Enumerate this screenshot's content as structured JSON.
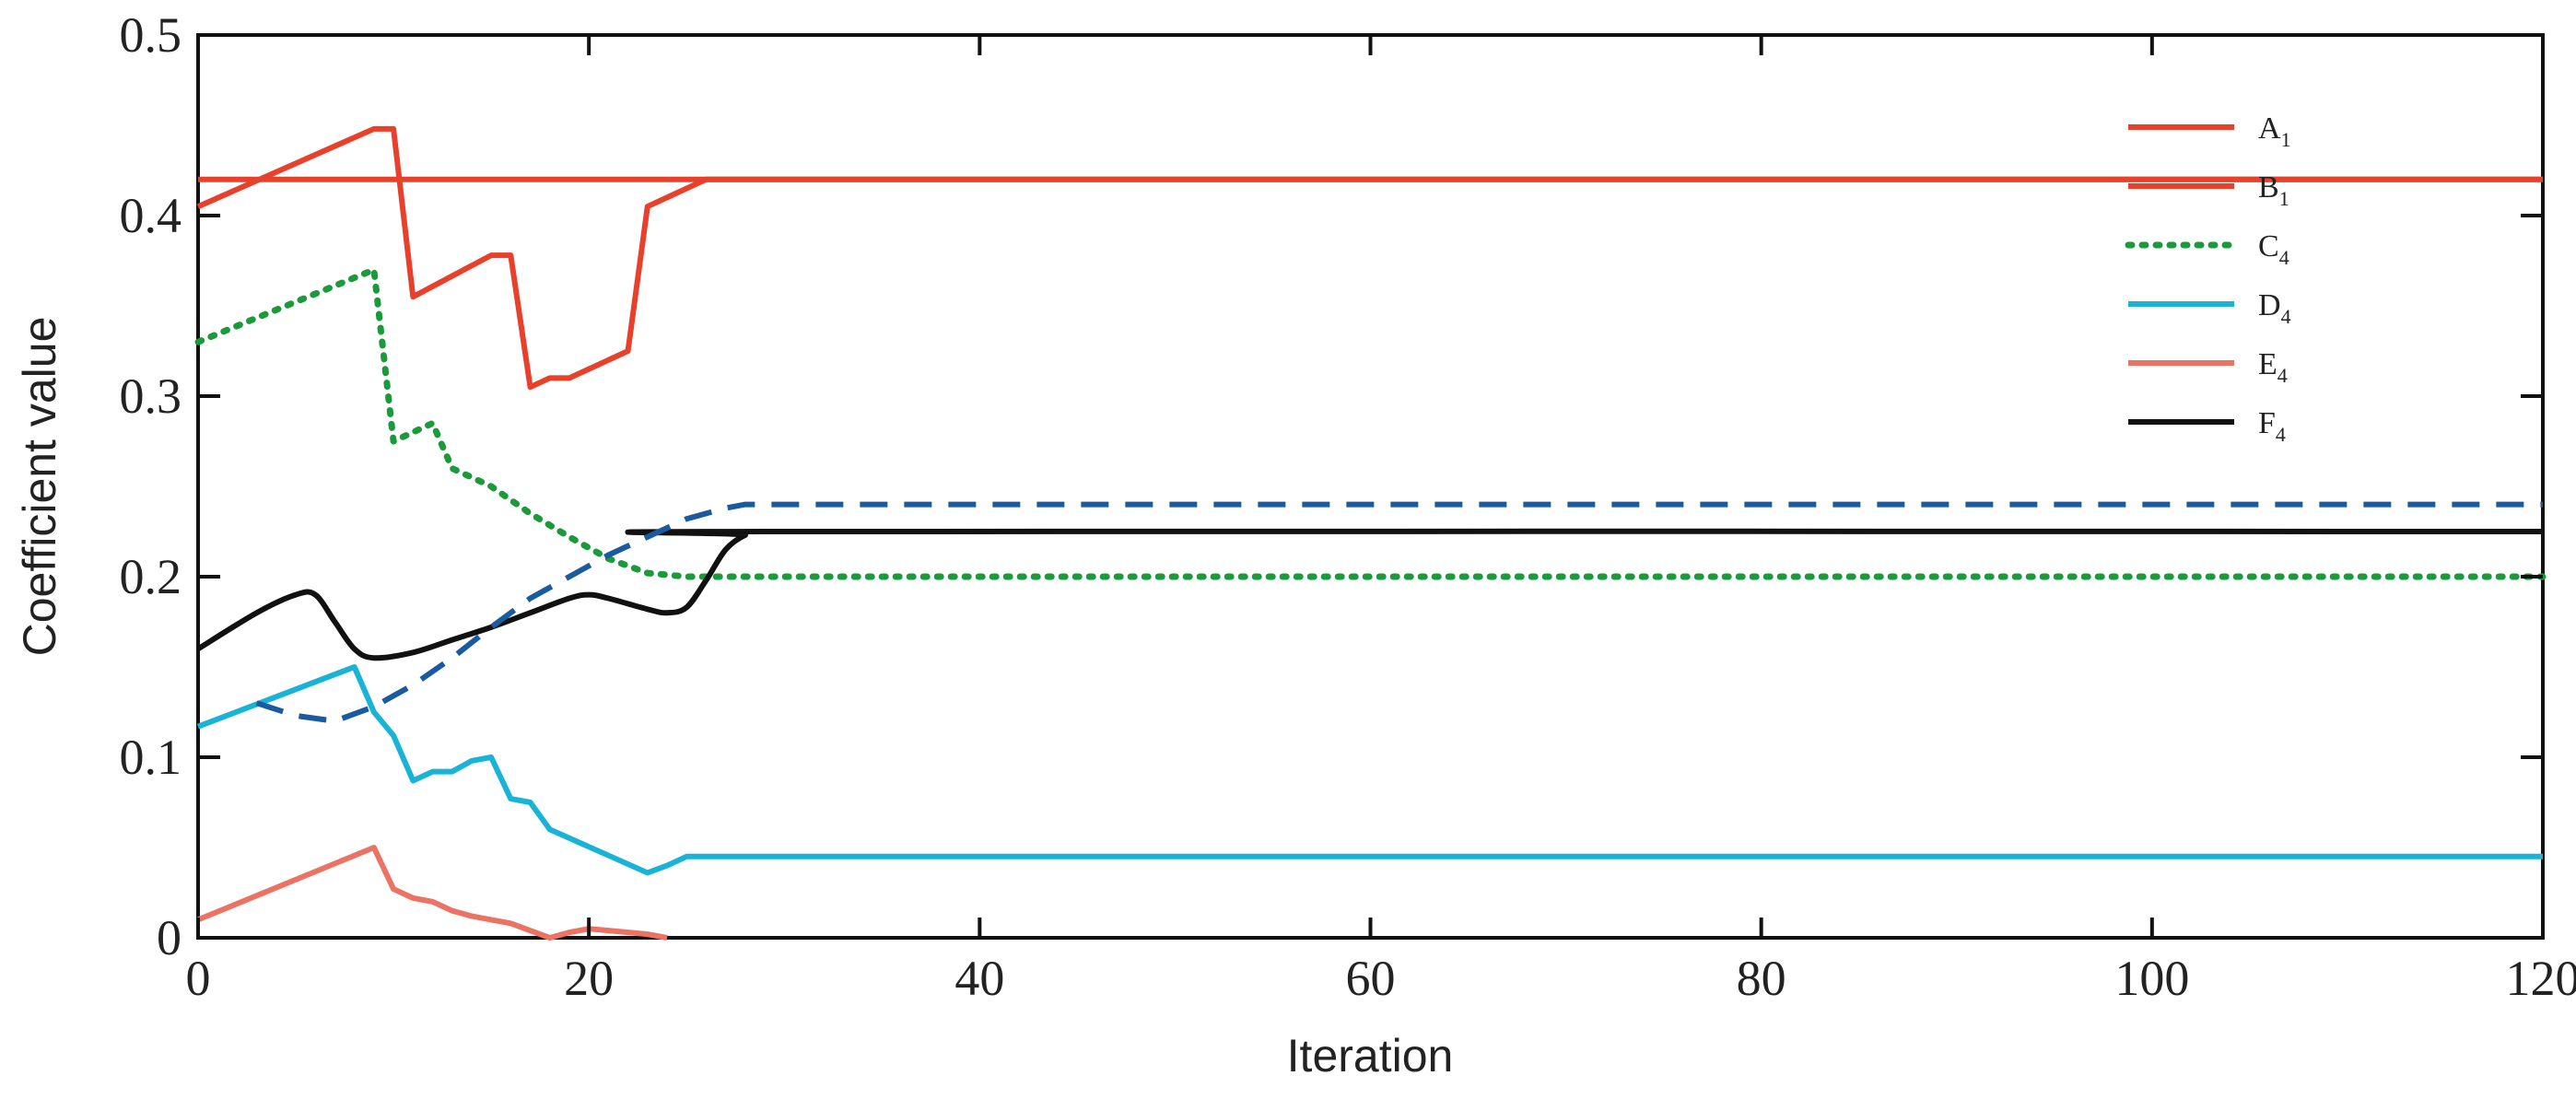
{
  "chart_data": {
    "type": "line",
    "title": "",
    "xlabel": "Iteration",
    "ylabel": "Coefficient value",
    "xlim": [
      0,
      120
    ],
    "ylim": [
      0,
      0.5
    ],
    "xticks": [
      0,
      20,
      40,
      60,
      80,
      100,
      120
    ],
    "xtick_labels": [
      "0",
      "20",
      "40",
      "60",
      "80",
      "100",
      "120"
    ],
    "yticks": [
      0,
      0.1,
      0.2,
      0.3,
      0.4,
      0.5
    ],
    "ytick_labels": [
      "0",
      "0.1",
      "0.2",
      "0.3",
      "0.4",
      "0.5"
    ],
    "zero_label_color": "#cc2222",
    "grid": false,
    "legend_position": "top-right",
    "series": [
      {
        "name": "A",
        "subscript": "1",
        "color": "#e8402a",
        "style": "solid",
        "x": [
          0,
          9,
          10,
          11,
          15,
          16,
          17,
          18,
          19,
          22,
          23,
          24,
          26,
          120
        ],
        "y": [
          0.405,
          0.448,
          0.448,
          0.355,
          0.378,
          0.378,
          0.305,
          0.31,
          0.31,
          0.325,
          0.405,
          0.41,
          0.42,
          0.42
        ]
      },
      {
        "name": "B",
        "subscript": "1",
        "color": "#e8402a",
        "style": "solid",
        "x": [
          0,
          120
        ],
        "y": [
          0.42,
          0.42
        ]
      },
      {
        "name": "C",
        "subscript": "4",
        "color": "#1a9a3a",
        "style": "dotted",
        "x": [
          0,
          9,
          10,
          11,
          12,
          13,
          14,
          15,
          17,
          19,
          21,
          23,
          25,
          120
        ],
        "y": [
          0.33,
          0.37,
          0.275,
          0.28,
          0.285,
          0.26,
          0.255,
          0.25,
          0.235,
          0.222,
          0.21,
          0.202,
          0.2,
          0.2
        ]
      },
      {
        "name": "D",
        "subscript": "4",
        "color": "#18b3d6",
        "style": "solid",
        "x": [
          0,
          8,
          9,
          10,
          11,
          12,
          13,
          14,
          15,
          16,
          17,
          18,
          23,
          24,
          25,
          120
        ],
        "y": [
          0.117,
          0.15,
          0.125,
          0.112,
          0.087,
          0.092,
          0.092,
          0.098,
          0.1,
          0.077,
          0.075,
          0.06,
          0.036,
          0.04,
          0.045,
          0.045
        ]
      },
      {
        "name": "E",
        "subscript": "4",
        "color": "#ec7363",
        "style": "solid",
        "x": [
          0,
          9,
          10,
          11,
          12,
          13,
          14,
          15,
          16,
          17,
          18,
          19,
          20,
          21,
          22,
          23,
          24
        ],
        "y": [
          0.01,
          0.05,
          0.027,
          0.022,
          0.02,
          0.015,
          0.012,
          0.01,
          0.008,
          0.004,
          0.0,
          0.003,
          0.005,
          0.004,
          0.003,
          0.002,
          0.0
        ]
      },
      {
        "name": "F",
        "subscript": "4",
        "color": "#111111",
        "style": "solid",
        "smooth": true,
        "x": [
          0,
          3,
          5,
          6,
          7,
          8,
          9,
          11,
          13,
          15,
          17,
          19,
          20,
          21,
          23,
          24,
          25,
          26,
          27,
          28,
          29,
          120
        ],
        "y": [
          0.16,
          0.18,
          0.19,
          0.19,
          0.175,
          0.16,
          0.155,
          0.158,
          0.165,
          0.172,
          0.18,
          0.188,
          0.19,
          0.188,
          0.182,
          0.18,
          0.183,
          0.198,
          0.215,
          0.223,
          0.225,
          0.225
        ]
      },
      {
        "name": "",
        "subscript": "",
        "color": "#1a5a9e",
        "style": "dashed",
        "x": [
          3,
          5,
          7,
          9,
          11,
          13,
          15,
          17,
          19,
          21,
          23,
          25,
          27,
          28,
          120
        ],
        "y": [
          0.13,
          0.123,
          0.12,
          0.128,
          0.14,
          0.155,
          0.172,
          0.188,
          0.2,
          0.212,
          0.222,
          0.232,
          0.238,
          0.24,
          0.24
        ]
      }
    ]
  }
}
